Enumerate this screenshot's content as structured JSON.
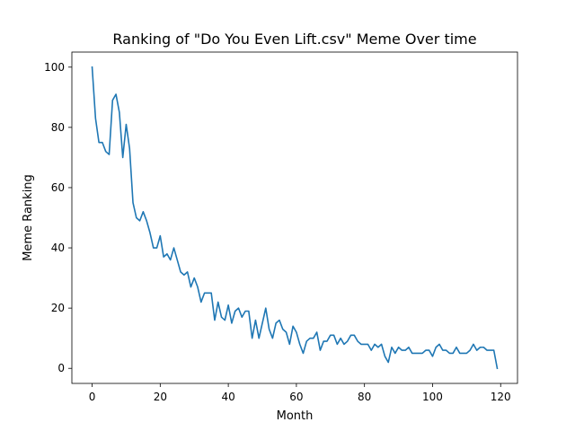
{
  "chart_data": {
    "type": "line",
    "title": "Ranking of \"Do You Even Lift.csv\" Meme Over time",
    "xlabel": "Month",
    "ylabel": "Meme Ranking",
    "xlim": [
      -5.95,
      124.95
    ],
    "ylim": [
      -5,
      105
    ],
    "x_ticks": [
      0,
      20,
      40,
      60,
      80,
      100,
      120
    ],
    "y_ticks": [
      0,
      20,
      40,
      60,
      80,
      100
    ],
    "grid": false,
    "series": [
      {
        "color": "#1f77b4",
        "x": [
          0,
          1,
          2,
          3,
          4,
          5,
          6,
          7,
          8,
          9,
          10,
          11,
          12,
          13,
          14,
          15,
          16,
          17,
          18,
          19,
          20,
          21,
          22,
          23,
          24,
          25,
          26,
          27,
          28,
          29,
          30,
          31,
          32,
          33,
          34,
          35,
          36,
          37,
          38,
          39,
          40,
          41,
          42,
          43,
          44,
          45,
          46,
          47,
          48,
          49,
          50,
          51,
          52,
          53,
          54,
          55,
          56,
          57,
          58,
          59,
          60,
          61,
          62,
          63,
          64,
          65,
          66,
          67,
          68,
          69,
          70,
          71,
          72,
          73,
          74,
          75,
          76,
          77,
          78,
          79,
          80,
          81,
          82,
          83,
          84,
          85,
          86,
          87,
          88,
          89,
          90,
          91,
          92,
          93,
          94,
          95,
          96,
          97,
          98,
          99,
          100,
          101,
          102,
          103,
          104,
          105,
          106,
          107,
          108,
          109,
          110,
          111,
          112,
          113,
          114,
          115,
          116,
          117,
          118,
          119
        ],
        "values": [
          100,
          83,
          75,
          75,
          72,
          71,
          89,
          91,
          85,
          70,
          81,
          73,
          55,
          50,
          49,
          52,
          49,
          45,
          40,
          40,
          44,
          37,
          38,
          36,
          40,
          36,
          32,
          31,
          32,
          27,
          30,
          27,
          22,
          25,
          25,
          25,
          16,
          22,
          17,
          16,
          21,
          15,
          19,
          20,
          17,
          19,
          19,
          10,
          16,
          10,
          15,
          20,
          13,
          10,
          15,
          16,
          13,
          12,
          8,
          14,
          12,
          8,
          5,
          9,
          10,
          10,
          12,
          6,
          9,
          9,
          11,
          11,
          8,
          10,
          8,
          9,
          11,
          11,
          9,
          8,
          8,
          8,
          6,
          8,
          7,
          8,
          4,
          2,
          7,
          5,
          7,
          6,
          6,
          7,
          5,
          5,
          5,
          5,
          6,
          6,
          4,
          7,
          8,
          6,
          6,
          5,
          5,
          7,
          5,
          5,
          5,
          6,
          8,
          6,
          7,
          7,
          6,
          6,
          6,
          0
        ]
      }
    ]
  }
}
